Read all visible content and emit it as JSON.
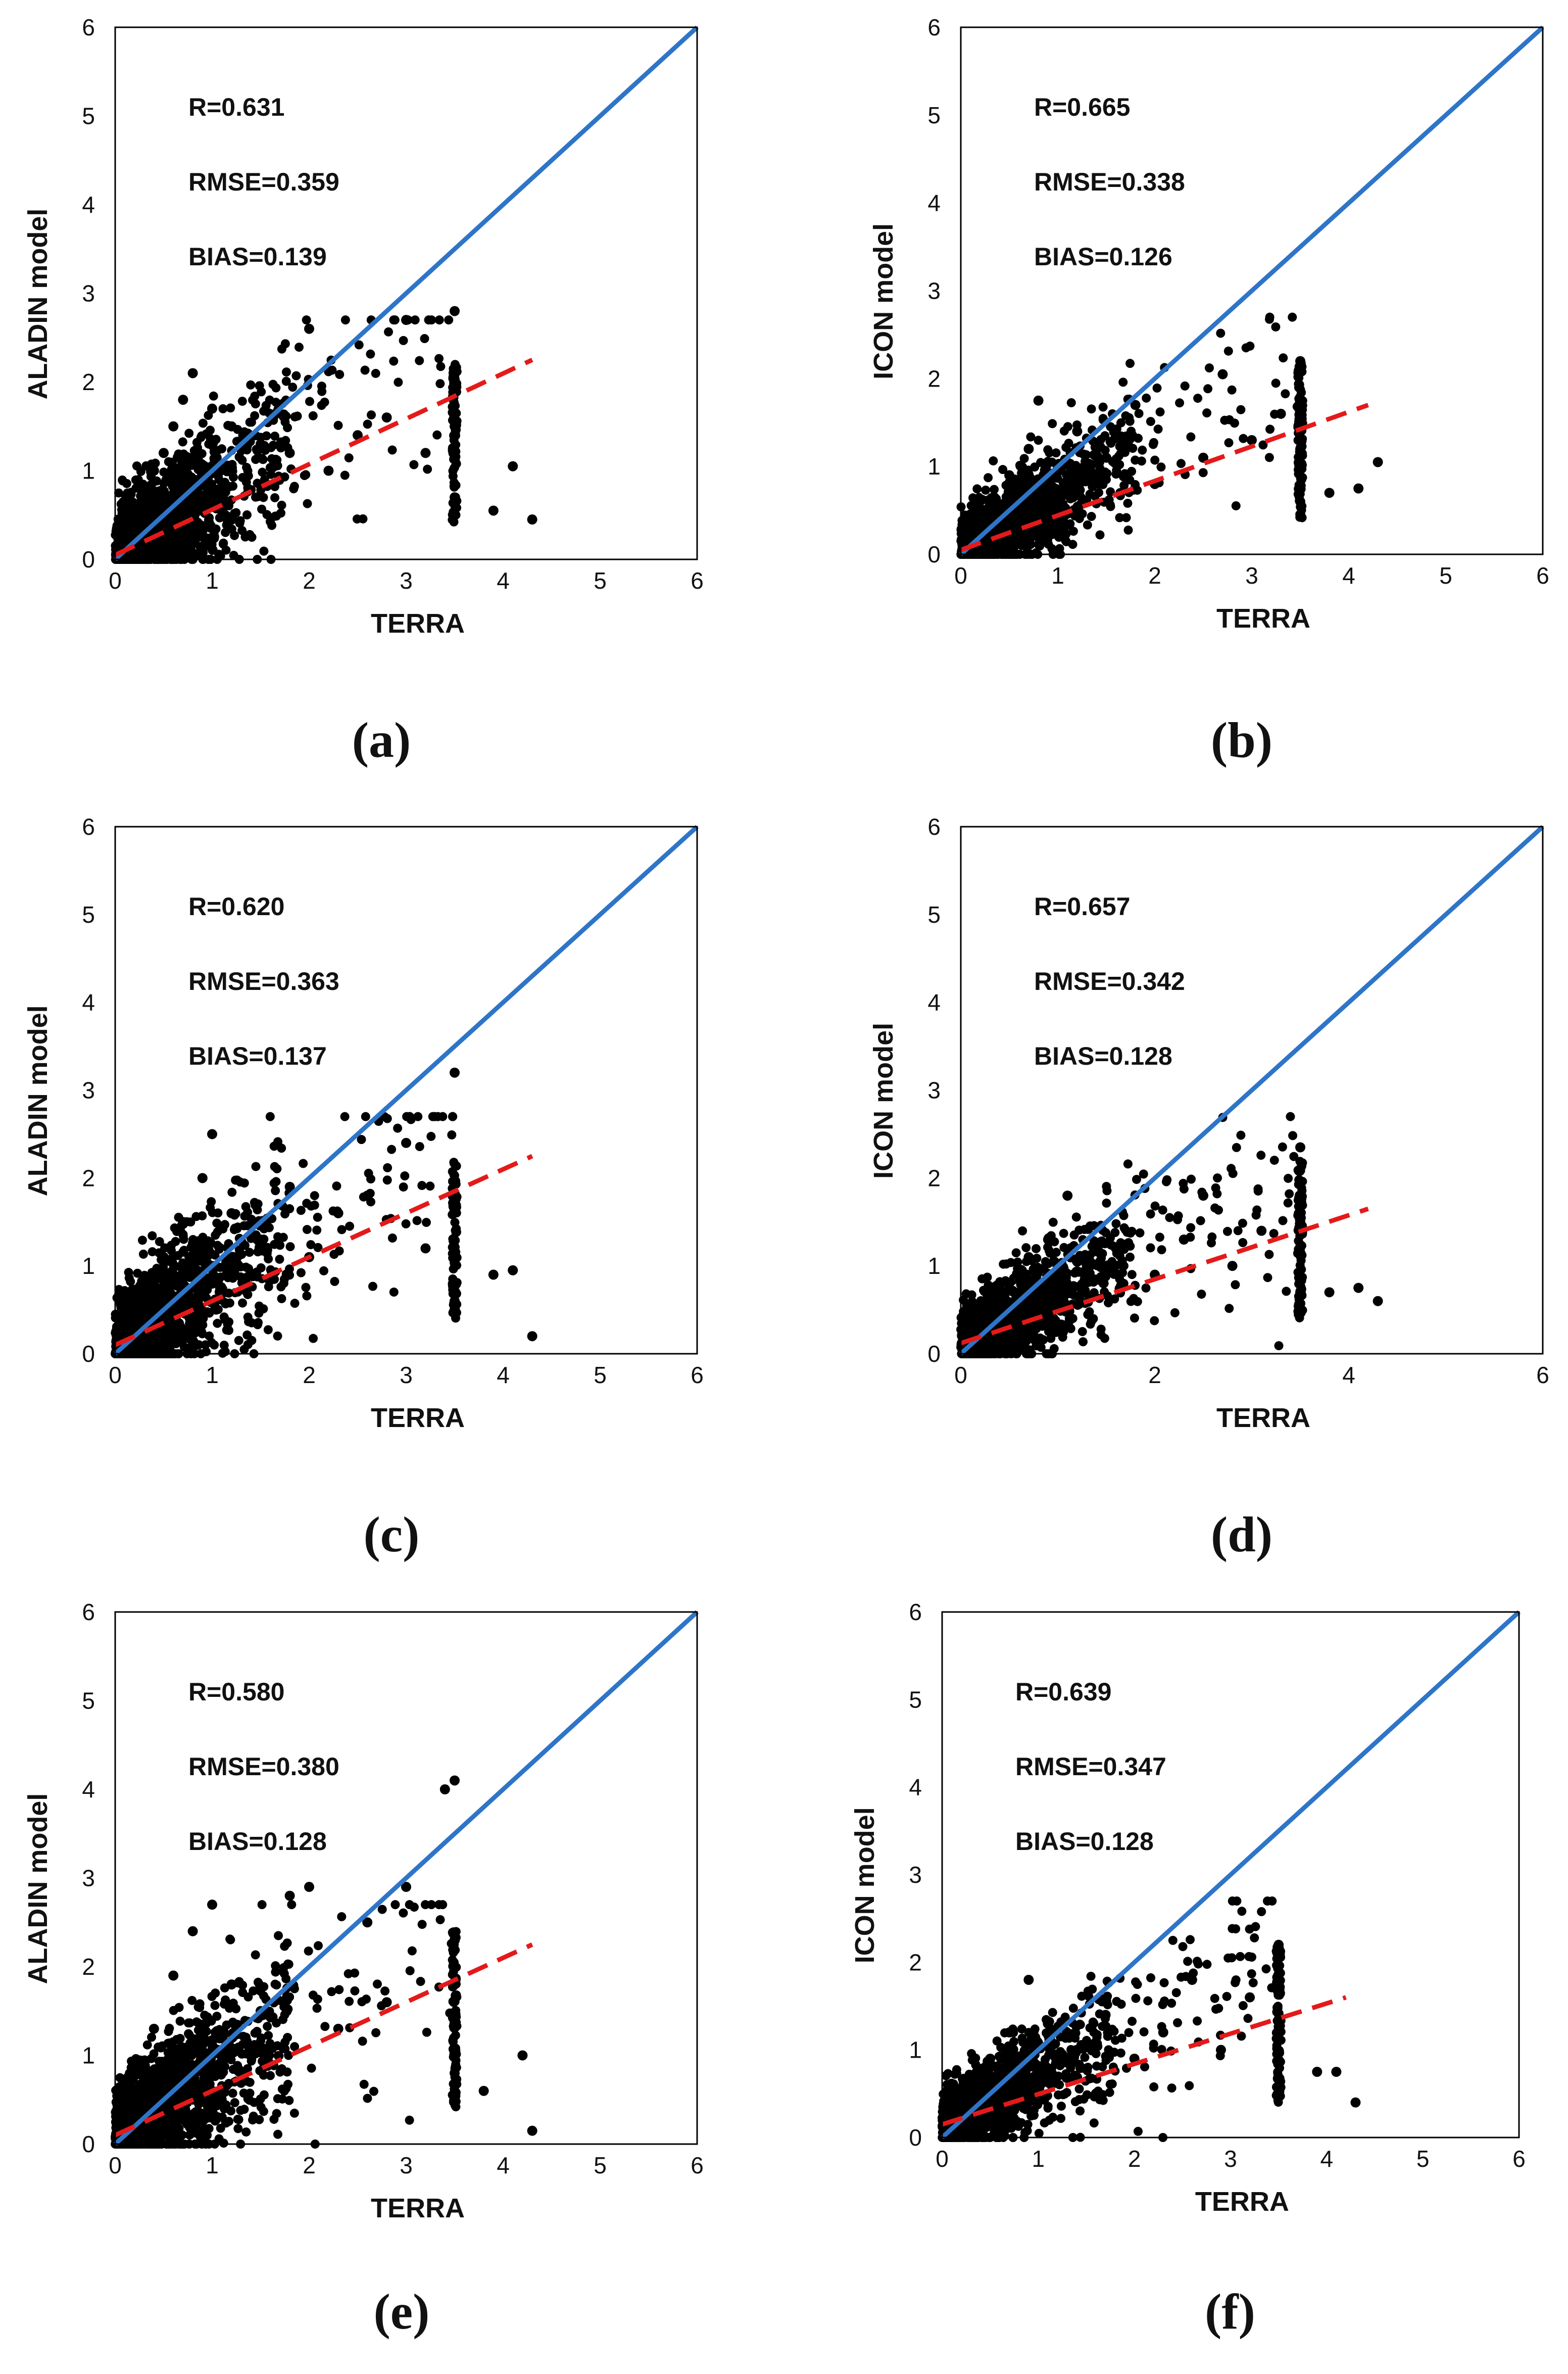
{
  "colors": {
    "identity_line": "#2e75c8",
    "regression_line": "#e41a1a",
    "points": "#000000"
  },
  "chart_data": [
    {
      "type": "scatter",
      "panel_label": "(a)",
      "xlabel": "TERRA",
      "ylabel": "ALADIN model",
      "xlim": [
        0,
        6
      ],
      "ylim": [
        0,
        6
      ],
      "xticks": [
        "0",
        "1",
        "2",
        "3",
        "4",
        "5",
        "6"
      ],
      "yticks": [
        "0",
        "1",
        "2",
        "3",
        "4",
        "5",
        "6"
      ],
      "stats": [
        "R=0.631",
        "RMSE=0.359",
        "BIAS=0.139"
      ],
      "identity_line": {
        "x": [
          0,
          6
        ],
        "y": [
          0,
          6
        ]
      },
      "regression_line": {
        "x": [
          0,
          4.3
        ],
        "y": [
          0.05,
          2.25
        ]
      },
      "points_sample": [
        [
          0.1,
          0.2
        ],
        [
          0.2,
          0.5
        ],
        [
          0.3,
          0.8
        ],
        [
          0.4,
          1.0
        ],
        [
          0.5,
          1.2
        ],
        [
          0.6,
          1.5
        ],
        [
          0.7,
          1.8
        ],
        [
          0.8,
          2.1
        ],
        [
          1.0,
          1.7
        ],
        [
          1.2,
          1.5
        ],
        [
          1.5,
          1.3
        ],
        [
          1.8,
          1.2
        ],
        [
          2.0,
          2.6
        ],
        [
          2.2,
          1.0
        ],
        [
          2.5,
          1.4
        ],
        [
          2.8,
          1.6
        ],
        [
          3.0,
          2.7
        ],
        [
          3.2,
          1.2
        ],
        [
          3.5,
          2.8
        ],
        [
          3.5,
          1.5
        ],
        [
          3.5,
          0.7
        ],
        [
          4.1,
          1.05
        ],
        [
          4.3,
          0.45
        ],
        [
          3.9,
          0.55
        ]
      ]
    },
    {
      "type": "scatter",
      "panel_label": "(b)",
      "xlabel": "TERRA",
      "ylabel": "ICON model",
      "xlim": [
        0,
        6
      ],
      "ylim": [
        0,
        6
      ],
      "xticks": [
        "0",
        "1",
        "2",
        "3",
        "4",
        "5",
        "6"
      ],
      "yticks": [
        "0",
        "1",
        "2",
        "3",
        "4",
        "5",
        "6"
      ],
      "stats": [
        "R=0.665",
        "RMSE=0.338",
        "BIAS=0.126"
      ],
      "identity_line": {
        "x": [
          0,
          6
        ],
        "y": [
          0,
          6
        ]
      },
      "regression_line": {
        "x": [
          0,
          4.2
        ],
        "y": [
          0.05,
          1.7
        ]
      },
      "points_sample": [
        [
          0.1,
          0.2
        ],
        [
          0.3,
          0.6
        ],
        [
          0.5,
          0.9
        ],
        [
          0.7,
          1.2
        ],
        [
          0.8,
          1.75
        ],
        [
          1.0,
          1.0
        ],
        [
          1.2,
          1.4
        ],
        [
          1.5,
          1.1
        ],
        [
          1.8,
          1.7
        ],
        [
          2.0,
          0.8
        ],
        [
          2.5,
          1.1
        ],
        [
          2.7,
          2.05
        ],
        [
          3.0,
          1.3
        ],
        [
          3.3,
          1.6
        ],
        [
          3.5,
          2.2
        ],
        [
          3.5,
          1.2
        ],
        [
          3.5,
          0.6
        ],
        [
          4.1,
          0.75
        ],
        [
          4.3,
          1.05
        ],
        [
          3.8,
          0.7
        ]
      ]
    },
    {
      "type": "scatter",
      "panel_label": "(c)",
      "xlabel": "TERRA",
      "ylabel": "ALADIN model",
      "xlim": [
        0,
        6
      ],
      "ylim": [
        0,
        6
      ],
      "xticks": [
        "0",
        "1",
        "2",
        "3",
        "4",
        "5",
        "6"
      ],
      "yticks": [
        "0",
        "1",
        "2",
        "3",
        "4",
        "5",
        "6"
      ],
      "stats": [
        "R=0.620",
        "RMSE=0.363",
        "BIAS=0.137"
      ],
      "identity_line": {
        "x": [
          0,
          6
        ],
        "y": [
          0,
          6
        ]
      },
      "regression_line": {
        "x": [
          0,
          4.3
        ],
        "y": [
          0.1,
          2.25
        ]
      },
      "points_sample": [
        [
          0.1,
          0.3
        ],
        [
          0.3,
          0.7
        ],
        [
          0.5,
          1.1
        ],
        [
          0.7,
          1.5
        ],
        [
          0.9,
          2.0
        ],
        [
          1.0,
          2.5
        ],
        [
          1.2,
          1.6
        ],
        [
          1.5,
          1.3
        ],
        [
          1.8,
          1.9
        ],
        [
          2.0,
          1.1
        ],
        [
          2.3,
          1.6
        ],
        [
          2.6,
          1.8
        ],
        [
          3.0,
          2.4
        ],
        [
          3.2,
          1.2
        ],
        [
          3.5,
          3.2
        ],
        [
          3.5,
          1.8
        ],
        [
          3.5,
          0.6
        ],
        [
          3.9,
          0.9
        ],
        [
          4.1,
          0.95
        ],
        [
          4.3,
          0.2
        ]
      ]
    },
    {
      "type": "scatter",
      "panel_label": "(d)",
      "xlabel": "TERRA",
      "ylabel": "ICON model",
      "xlim": [
        0,
        6
      ],
      "ylim": [
        0,
        6
      ],
      "xticks": [
        "0",
        "2",
        "4",
        "6"
      ],
      "yticks": [
        "0",
        "1",
        "2",
        "3",
        "4",
        "5",
        "6"
      ],
      "stats": [
        "R=0.657",
        "RMSE=0.342",
        "BIAS=0.128"
      ],
      "identity_line": {
        "x": [
          0,
          6
        ],
        "y": [
          0,
          6
        ]
      },
      "regression_line": {
        "x": [
          0,
          4.2
        ],
        "y": [
          0.12,
          1.65
        ]
      },
      "points_sample": [
        [
          0.1,
          0.2
        ],
        [
          0.3,
          0.5
        ],
        [
          0.5,
          0.8
        ],
        [
          0.7,
          1.1
        ],
        [
          0.9,
          1.3
        ],
        [
          1.1,
          1.8
        ],
        [
          1.3,
          1.0
        ],
        [
          1.6,
          1.2
        ],
        [
          2.0,
          0.9
        ],
        [
          2.3,
          1.3
        ],
        [
          2.5,
          1.8
        ],
        [
          2.8,
          1.0
        ],
        [
          3.1,
          1.4
        ],
        [
          3.5,
          2.35
        ],
        [
          3.5,
          1.5
        ],
        [
          3.5,
          0.7
        ],
        [
          3.8,
          0.7
        ],
        [
          4.1,
          0.75
        ],
        [
          4.3,
          0.6
        ]
      ]
    },
    {
      "type": "scatter",
      "panel_label": "(e)",
      "xlabel": "TERRA",
      "ylabel": "ALADIN model",
      "xlim": [
        0,
        6
      ],
      "ylim": [
        0,
        6
      ],
      "xticks": [
        "0",
        "1",
        "2",
        "3",
        "4",
        "5",
        "6"
      ],
      "yticks": [
        "0",
        "1",
        "2",
        "3",
        "4",
        "5",
        "6"
      ],
      "stats": [
        "R=0.580",
        "RMSE=0.380",
        "BIAS=0.128"
      ],
      "identity_line": {
        "x": [
          0,
          6
        ],
        "y": [
          0,
          6
        ]
      },
      "regression_line": {
        "x": [
          0,
          4.3
        ],
        "y": [
          0.1,
          2.25
        ]
      },
      "points_sample": [
        [
          0.1,
          0.3
        ],
        [
          0.2,
          0.8
        ],
        [
          0.4,
          1.3
        ],
        [
          0.6,
          1.9
        ],
        [
          0.8,
          2.4
        ],
        [
          1.0,
          2.7
        ],
        [
          1.2,
          1.8
        ],
        [
          1.5,
          1.5
        ],
        [
          1.8,
          2.8
        ],
        [
          2.0,
          2.9
        ],
        [
          2.3,
          1.3
        ],
        [
          2.6,
          2.5
        ],
        [
          2.8,
          1.6
        ],
        [
          3.0,
          2.9
        ],
        [
          3.4,
          4.0
        ],
        [
          3.5,
          4.1
        ],
        [
          3.5,
          2.3
        ],
        [
          3.5,
          0.8
        ],
        [
          3.8,
          0.6
        ],
        [
          4.2,
          1.0
        ],
        [
          4.3,
          0.15
        ]
      ]
    },
    {
      "type": "scatter",
      "panel_label": "(f)",
      "xlabel": "TERRA",
      "ylabel": "ICON model",
      "xlim": [
        0,
        6
      ],
      "ylim": [
        0,
        6
      ],
      "xticks": [
        "0",
        "1",
        "2",
        "3",
        "4",
        "5",
        "6"
      ],
      "yticks": [
        "0",
        "1",
        "2",
        "3",
        "4",
        "5",
        "6"
      ],
      "stats": [
        "R=0.639",
        "RMSE=0.347",
        "BIAS=0.128"
      ],
      "identity_line": {
        "x": [
          0,
          6
        ],
        "y": [
          0,
          6
        ]
      },
      "regression_line": {
        "x": [
          0,
          4.2
        ],
        "y": [
          0.15,
          1.6
        ]
      },
      "points_sample": [
        [
          0.1,
          0.2
        ],
        [
          0.3,
          0.6
        ],
        [
          0.5,
          0.9
        ],
        [
          0.7,
          1.2
        ],
        [
          0.9,
          1.8
        ],
        [
          1.1,
          1.3
        ],
        [
          1.4,
          1.0
        ],
        [
          1.7,
          1.4
        ],
        [
          2.0,
          0.9
        ],
        [
          2.3,
          1.2
        ],
        [
          2.6,
          1.8
        ],
        [
          2.9,
          1.0
        ],
        [
          3.2,
          1.6
        ],
        [
          3.5,
          2.2
        ],
        [
          3.5,
          1.2
        ],
        [
          3.5,
          0.5
        ],
        [
          3.9,
          0.75
        ],
        [
          4.1,
          0.75
        ],
        [
          4.3,
          0.4
        ]
      ]
    }
  ]
}
